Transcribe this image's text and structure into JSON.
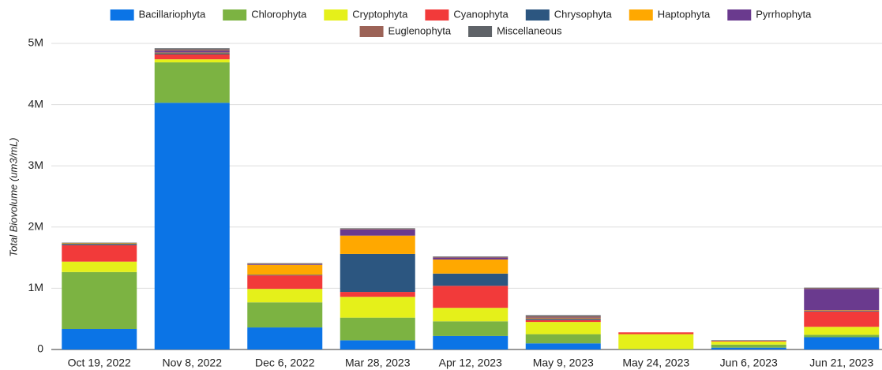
{
  "chart_data": {
    "type": "stacked_bar",
    "y_label": "Total Biovolume (um3/mL)",
    "categories": [
      "Oct 19, 2022",
      "Nov 8, 2022",
      "Dec 6, 2022",
      "Mar 28, 2023",
      "Apr 12, 2023",
      "May 9, 2023",
      "May 24, 2023",
      "Jun 6, 2023",
      "Jun 21, 2023"
    ],
    "series": [
      {
        "name": "Bacillariophyta",
        "color": "#0b74e6",
        "values": [
          335000,
          4030000,
          360000,
          150000,
          220000,
          100000,
          0,
          30000,
          200000
        ]
      },
      {
        "name": "Chlorophyta",
        "color": "#7cb342",
        "values": [
          930000,
          660000,
          410000,
          370000,
          240000,
          150000,
          10000,
          50000,
          40000
        ]
      },
      {
        "name": "Cryptophyta",
        "color": "#e5f01a",
        "values": [
          170000,
          50000,
          220000,
          340000,
          220000,
          200000,
          240000,
          50000,
          130000
        ]
      },
      {
        "name": "Cyanophyta",
        "color": "#f23a3a",
        "values": [
          270000,
          80000,
          220000,
          80000,
          360000,
          30000,
          30000,
          10000,
          250000
        ]
      },
      {
        "name": "Chrysophyta",
        "color": "#2c5680",
        "values": [
          20000,
          20000,
          10000,
          620000,
          200000,
          20000,
          0,
          0,
          10000
        ]
      },
      {
        "name": "Haptophyta",
        "color": "#ffa800",
        "values": [
          10000,
          10000,
          160000,
          300000,
          230000,
          10000,
          0,
          0,
          10000
        ]
      },
      {
        "name": "Pyrrhophyta",
        "color": "#6a3a8e",
        "values": [
          0,
          30000,
          10000,
          100000,
          30000,
          10000,
          0,
          0,
          350000
        ]
      },
      {
        "name": "Euglenophyta",
        "color": "#9c6357",
        "values": [
          0,
          20000,
          10000,
          10000,
          10000,
          20000,
          0,
          0,
          10000
        ]
      },
      {
        "name": "Miscellaneous",
        "color": "#5f6368",
        "values": [
          10000,
          20000,
          10000,
          10000,
          10000,
          20000,
          0,
          10000,
          10000
        ]
      }
    ],
    "ylim": [
      0,
      5000000
    ],
    "yticks": [
      0,
      {
        "value": 1000000,
        "label": "1M"
      },
      {
        "value": 2000000,
        "label": "2M"
      },
      {
        "value": 3000000,
        "label": "3M"
      },
      {
        "value": 4000000,
        "label": "4M"
      },
      {
        "value": 5000000,
        "label": "5M"
      }
    ],
    "grid": true,
    "legend": "top"
  }
}
